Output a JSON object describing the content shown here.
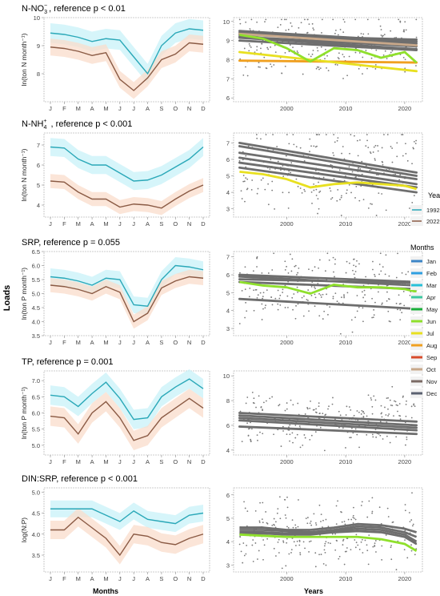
{
  "figure": {
    "y_label": "Loads",
    "x_label_left": "Months",
    "x_label_right": "Years",
    "legend_years_title": "Years",
    "legend_years": [
      {
        "label": "1992",
        "color": "#2aa8b8"
      },
      {
        "label": "2022",
        "color": "#8a5a44"
      }
    ],
    "legend_months_title": "Months",
    "legend_months": [
      {
        "label": "Jan",
        "color": "#3d85c6"
      },
      {
        "label": "Feb",
        "color": "#2f9fe0"
      },
      {
        "label": "Mar",
        "color": "#27c0d8"
      },
      {
        "label": "Apr",
        "color": "#3cc8a0"
      },
      {
        "label": "May",
        "color": "#1aae3a"
      },
      {
        "label": "Jun",
        "color": "#8fe02c"
      },
      {
        "label": "Jul",
        "color": "#e8e020"
      },
      {
        "label": "Aug",
        "color": "#f0a020"
      },
      {
        "label": "Sep",
        "color": "#d84c2c"
      },
      {
        "label": "Oct",
        "color": "#c8a88a"
      },
      {
        "label": "Nov",
        "color": "#7a6a64"
      },
      {
        "label": "Dec",
        "color": "#5a6070"
      }
    ]
  },
  "chart_data": [
    {
      "type": "line",
      "title": "N-NO3 , reference p < 0.01",
      "title_main": "N-NO",
      "title_sub": "3",
      "title_sup": "−",
      "title_rest": ", reference p < 0.01",
      "ylabel": "ln(ton N month⁻¹)",
      "categories": [
        "J",
        "F",
        "M",
        "A",
        "M",
        "J",
        "J",
        "A",
        "S",
        "O",
        "N",
        "D"
      ],
      "ylim": [
        7.0,
        10.0
      ],
      "yticks": [
        8,
        9,
        10
      ],
      "series": [
        {
          "name": "1992",
          "color": "#2aa8b8",
          "values": [
            9.45,
            9.4,
            9.3,
            9.15,
            9.25,
            9.2,
            8.6,
            8.0,
            9.0,
            9.45,
            9.6,
            9.55
          ],
          "band": 0.35
        },
        {
          "name": "2022",
          "color": "#8a5a44",
          "values": [
            8.95,
            8.9,
            8.8,
            8.65,
            8.75,
            7.8,
            7.4,
            7.85,
            8.5,
            8.7,
            9.1,
            9.05
          ],
          "band": 0.3
        }
      ],
      "trend": {
        "xlim": [
          1991,
          2023
        ],
        "ylim": [
          5.8,
          10.2
        ],
        "xticks": [
          2000,
          2010,
          2020
        ],
        "yticks": [
          6,
          7,
          8,
          9,
          10
        ],
        "scatter_center": 8.8,
        "scatter_spread": 0.8,
        "lines": [
          {
            "month": "Jan",
            "color": "#6e6e6e",
            "y": [
              9.4,
              8.85
            ]
          },
          {
            "month": "Feb",
            "color": "#6e6e6e",
            "y": [
              9.5,
              8.95
            ]
          },
          {
            "month": "Mar",
            "color": "#6e6e6e",
            "y": [
              9.3,
              9.05
            ]
          },
          {
            "month": "Apr",
            "color": "#6e6e6e",
            "y": [
              9.2,
              8.7
            ]
          },
          {
            "month": "Oct",
            "color": "#c8a88a",
            "y": [
              9.35,
              8.75
            ]
          },
          {
            "month": "Nov",
            "color": "#6e6e6e",
            "y": [
              9.15,
              8.55
            ]
          },
          {
            "month": "Dec",
            "color": "#6e6e6e",
            "y": [
              9.0,
              8.5
            ]
          },
          {
            "month": "Aug",
            "color": "#f0a020",
            "y": [
              7.95,
              7.85
            ]
          },
          {
            "month": "Jul",
            "color": "#e8e020",
            "y": [
              8.4,
              7.4
            ]
          }
        ],
        "curves": [
          {
            "month": "Jun",
            "color": "#8fe02c",
            "x": [
              1992,
              1996,
              2000,
              2004,
              2008,
              2012,
              2016,
              2020,
              2022
            ],
            "y": [
              9.3,
              9.1,
              8.6,
              7.9,
              8.6,
              8.5,
              8.1,
              8.4,
              7.85
            ]
          }
        ]
      }
    },
    {
      "type": "line",
      "title": "N-NH4+ , reference p < 0.001",
      "title_main": "N-NH",
      "title_sub": "4",
      "title_sup": "+",
      "title_rest": " , reference p < 0.001",
      "ylabel": "ln(ton N month⁻¹)",
      "categories": [
        "J",
        "F",
        "M",
        "A",
        "M",
        "J",
        "J",
        "A",
        "S",
        "O",
        "N",
        "D"
      ],
      "ylim": [
        3.4,
        7.6
      ],
      "yticks": [
        4,
        5,
        6,
        7
      ],
      "series": [
        {
          "name": "1992",
          "color": "#2aa8b8",
          "values": [
            6.9,
            6.85,
            6.3,
            6.0,
            6.0,
            5.6,
            5.2,
            5.25,
            5.5,
            5.9,
            6.3,
            6.9
          ],
          "band": 0.45
        },
        {
          "name": "2022",
          "color": "#8a5a44",
          "values": [
            5.2,
            5.15,
            4.65,
            4.3,
            4.3,
            3.9,
            4.05,
            4.0,
            3.85,
            4.3,
            4.7,
            5.0
          ],
          "band": 0.35
        }
      ],
      "trend": {
        "xlim": [
          1991,
          2023
        ],
        "ylim": [
          2.5,
          7.6
        ],
        "xticks": [
          2000,
          2010,
          2020
        ],
        "yticks": [
          3,
          4,
          5,
          6,
          7
        ],
        "scatter_center": 5.4,
        "scatter_spread": 1.2,
        "lines": [
          {
            "month": "Jan",
            "color": "#6e6e6e",
            "y": [
              7.0,
              5.2
            ]
          },
          {
            "month": "Feb",
            "color": "#6e6e6e",
            "y": [
              6.8,
              5.0
            ]
          },
          {
            "month": "Mar",
            "color": "#6e6e6e",
            "y": [
              6.4,
              4.8
            ]
          },
          {
            "month": "Apr",
            "color": "#6e6e6e",
            "y": [
              6.1,
              4.5
            ]
          },
          {
            "month": "Nov",
            "color": "#6e6e6e",
            "y": [
              5.8,
              4.3
            ]
          },
          {
            "month": "Dec",
            "color": "#6e6e6e",
            "y": [
              5.5,
              4.0
            ]
          }
        ],
        "curves": [
          {
            "month": "Jul",
            "color": "#e8e020",
            "x": [
              1992,
              1996,
              2000,
              2004,
              2008,
              2012,
              2016,
              2020,
              2022
            ],
            "y": [
              5.25,
              5.1,
              4.8,
              4.3,
              4.5,
              4.6,
              4.5,
              4.4,
              4.2
            ]
          }
        ]
      }
    },
    {
      "type": "line",
      "title": "SRP, reference p = 0.055",
      "title_main": "SRP, reference p = 0.055",
      "ylabel": "ln(ton P month⁻¹)",
      "categories": [
        "J",
        "F",
        "M",
        "A",
        "M",
        "J",
        "J",
        "A",
        "S",
        "O",
        "N",
        "D"
      ],
      "ylim": [
        3.5,
        6.5
      ],
      "yticks": [
        3.5,
        4.0,
        4.5,
        5.0,
        5.5,
        6.0,
        6.5
      ],
      "series": [
        {
          "name": "1992",
          "color": "#2aa8b8",
          "values": [
            5.6,
            5.55,
            5.45,
            5.3,
            5.55,
            5.5,
            4.6,
            4.55,
            5.5,
            6.0,
            5.95,
            5.85
          ],
          "band": 0.3
        },
        {
          "name": "2022",
          "color": "#8a5a44",
          "values": [
            5.3,
            5.25,
            5.15,
            5.0,
            5.25,
            5.05,
            4.0,
            4.3,
            5.2,
            5.45,
            5.6,
            5.55
          ],
          "band": 0.25
        }
      ],
      "trend": {
        "xlim": [
          1991,
          2023
        ],
        "ylim": [
          2.6,
          7.3
        ],
        "xticks": [
          2000,
          2010,
          2020
        ],
        "yticks": [
          3,
          4,
          5,
          6,
          7
        ],
        "scatter_center": 5.2,
        "scatter_spread": 1.0,
        "lines": [
          {
            "month": "Jan",
            "color": "#6e6e6e",
            "y": [
              6.0,
              5.6
            ]
          },
          {
            "month": "Feb",
            "color": "#6e6e6e",
            "y": [
              5.9,
              5.4
            ]
          },
          {
            "month": "Mar",
            "color": "#6e6e6e",
            "y": [
              5.75,
              5.55
            ]
          },
          {
            "month": "Apr",
            "color": "#6e6e6e",
            "y": [
              5.6,
              5.2
            ]
          },
          {
            "month": "Nov",
            "color": "#6e6e6e",
            "y": [
              4.65,
              4.1
            ]
          }
        ],
        "curves": [
          {
            "month": "Jun",
            "color": "#8fe02c",
            "x": [
              1992,
              1996,
              2000,
              2004,
              2008,
              2012,
              2016,
              2020,
              2022
            ],
            "y": [
              5.6,
              5.4,
              5.3,
              4.95,
              5.45,
              5.3,
              5.3,
              5.2,
              5.05
            ]
          }
        ]
      }
    },
    {
      "type": "line",
      "title": "TP, reference p = 0.001",
      "title_main": "TP, reference p = 0.001",
      "ylabel": "ln(ton P month⁻¹)",
      "categories": [
        "J",
        "F",
        "M",
        "A",
        "M",
        "J",
        "J",
        "A",
        "S",
        "O",
        "N",
        "D"
      ],
      "ylim": [
        4.7,
        7.3
      ],
      "yticks": [
        5.0,
        5.5,
        6.0,
        6.5,
        7.0
      ],
      "series": [
        {
          "name": "1992",
          "color": "#2aa8b8",
          "values": [
            6.55,
            6.5,
            6.2,
            6.6,
            6.95,
            6.45,
            5.8,
            5.85,
            6.5,
            6.8,
            7.05,
            6.75
          ],
          "band": 0.3
        },
        {
          "name": "2022",
          "color": "#8a5a44",
          "values": [
            5.9,
            5.85,
            5.35,
            6.0,
            6.35,
            5.85,
            5.15,
            5.3,
            5.85,
            6.15,
            6.45,
            6.15
          ],
          "band": 0.3
        }
      ],
      "trend": {
        "xlim": [
          1991,
          2023
        ],
        "ylim": [
          3.6,
          10.4
        ],
        "xticks": [
          2000,
          2010,
          2020
        ],
        "yticks": [
          4,
          6,
          8,
          10
        ],
        "scatter_center": 6.4,
        "scatter_spread": 1.0,
        "lines": [
          {
            "month": "Jan",
            "color": "#6e6e6e",
            "y": [
              7.0,
              6.3
            ]
          },
          {
            "month": "Feb",
            "color": "#6e6e6e",
            "y": [
              6.8,
              6.0
            ]
          },
          {
            "month": "Mar",
            "color": "#6e6e6e",
            "y": [
              6.6,
              5.8
            ]
          },
          {
            "month": "Apr",
            "color": "#6e6e6e",
            "y": [
              6.4,
              5.6
            ]
          },
          {
            "month": "Dec",
            "color": "#6e6e6e",
            "y": [
              5.9,
              5.3
            ]
          }
        ],
        "curves": []
      }
    },
    {
      "type": "line",
      "title": "DIN:SRP, reference p < 0.001",
      "title_main": "DIN:SRP, reference p < 0.001",
      "ylabel": "log(N:P)",
      "categories": [
        "J",
        "F",
        "M",
        "A",
        "M",
        "J",
        "J",
        "A",
        "S",
        "O",
        "N",
        "D"
      ],
      "ylim": [
        3.1,
        5.1
      ],
      "yticks": [
        3.5,
        4.0,
        4.5,
        5.0
      ],
      "series": [
        {
          "name": "1992",
          "color": "#2aa8b8",
          "values": [
            4.6,
            4.6,
            4.6,
            4.6,
            4.45,
            4.3,
            4.55,
            4.35,
            4.3,
            4.25,
            4.45,
            4.5
          ],
          "band": 0.2
        },
        {
          "name": "2022",
          "color": "#8a5a44",
          "values": [
            4.1,
            4.1,
            4.4,
            4.15,
            3.9,
            3.5,
            4.0,
            3.95,
            3.8,
            3.75,
            3.9,
            4.0
          ],
          "band": 0.22
        }
      ],
      "trend": {
        "xlim": [
          1991,
          2023
        ],
        "ylim": [
          2.7,
          6.3
        ],
        "xticks": [
          2000,
          2010,
          2020
        ],
        "yticks": [
          3,
          4,
          5,
          6
        ],
        "scatter_center": 4.4,
        "scatter_spread": 0.7,
        "lines": [],
        "curves": [
          {
            "month": "Jan",
            "color": "#6e6e6e",
            "x": [
              1992,
              1996,
              2000,
              2004,
              2008,
              2012,
              2016,
              2020,
              2022
            ],
            "y": [
              4.6,
              4.6,
              4.5,
              4.5,
              4.6,
              4.75,
              4.7,
              4.55,
              4.4
            ]
          },
          {
            "month": "Feb",
            "color": "#6e6e6e",
            "x": [
              1992,
              1996,
              2000,
              2004,
              2008,
              2012,
              2016,
              2020,
              2022
            ],
            "y": [
              4.5,
              4.5,
              4.45,
              4.4,
              4.5,
              4.65,
              4.6,
              4.4,
              4.2
            ]
          },
          {
            "month": "Mar",
            "color": "#6e6e6e",
            "x": [
              1992,
              1996,
              2000,
              2004,
              2008,
              2012,
              2016,
              2020,
              2022
            ],
            "y": [
              4.4,
              4.4,
              4.35,
              4.35,
              4.45,
              4.55,
              4.5,
              4.3,
              4.0
            ]
          },
          {
            "month": "Apr",
            "color": "#6e6e6e",
            "x": [
              1992,
              1996,
              2000,
              2004,
              2008,
              2012,
              2016,
              2020,
              2022
            ],
            "y": [
              4.3,
              4.35,
              4.3,
              4.3,
              4.4,
              4.45,
              4.4,
              4.2,
              3.9
            ]
          },
          {
            "month": "Jun",
            "color": "#8fe02c",
            "x": [
              1992,
              1996,
              2000,
              2004,
              2008,
              2012,
              2016,
              2020,
              2022
            ],
            "y": [
              4.3,
              4.25,
              4.2,
              4.2,
              4.2,
              4.2,
              4.1,
              3.9,
              3.6
            ]
          }
        ]
      }
    }
  ]
}
